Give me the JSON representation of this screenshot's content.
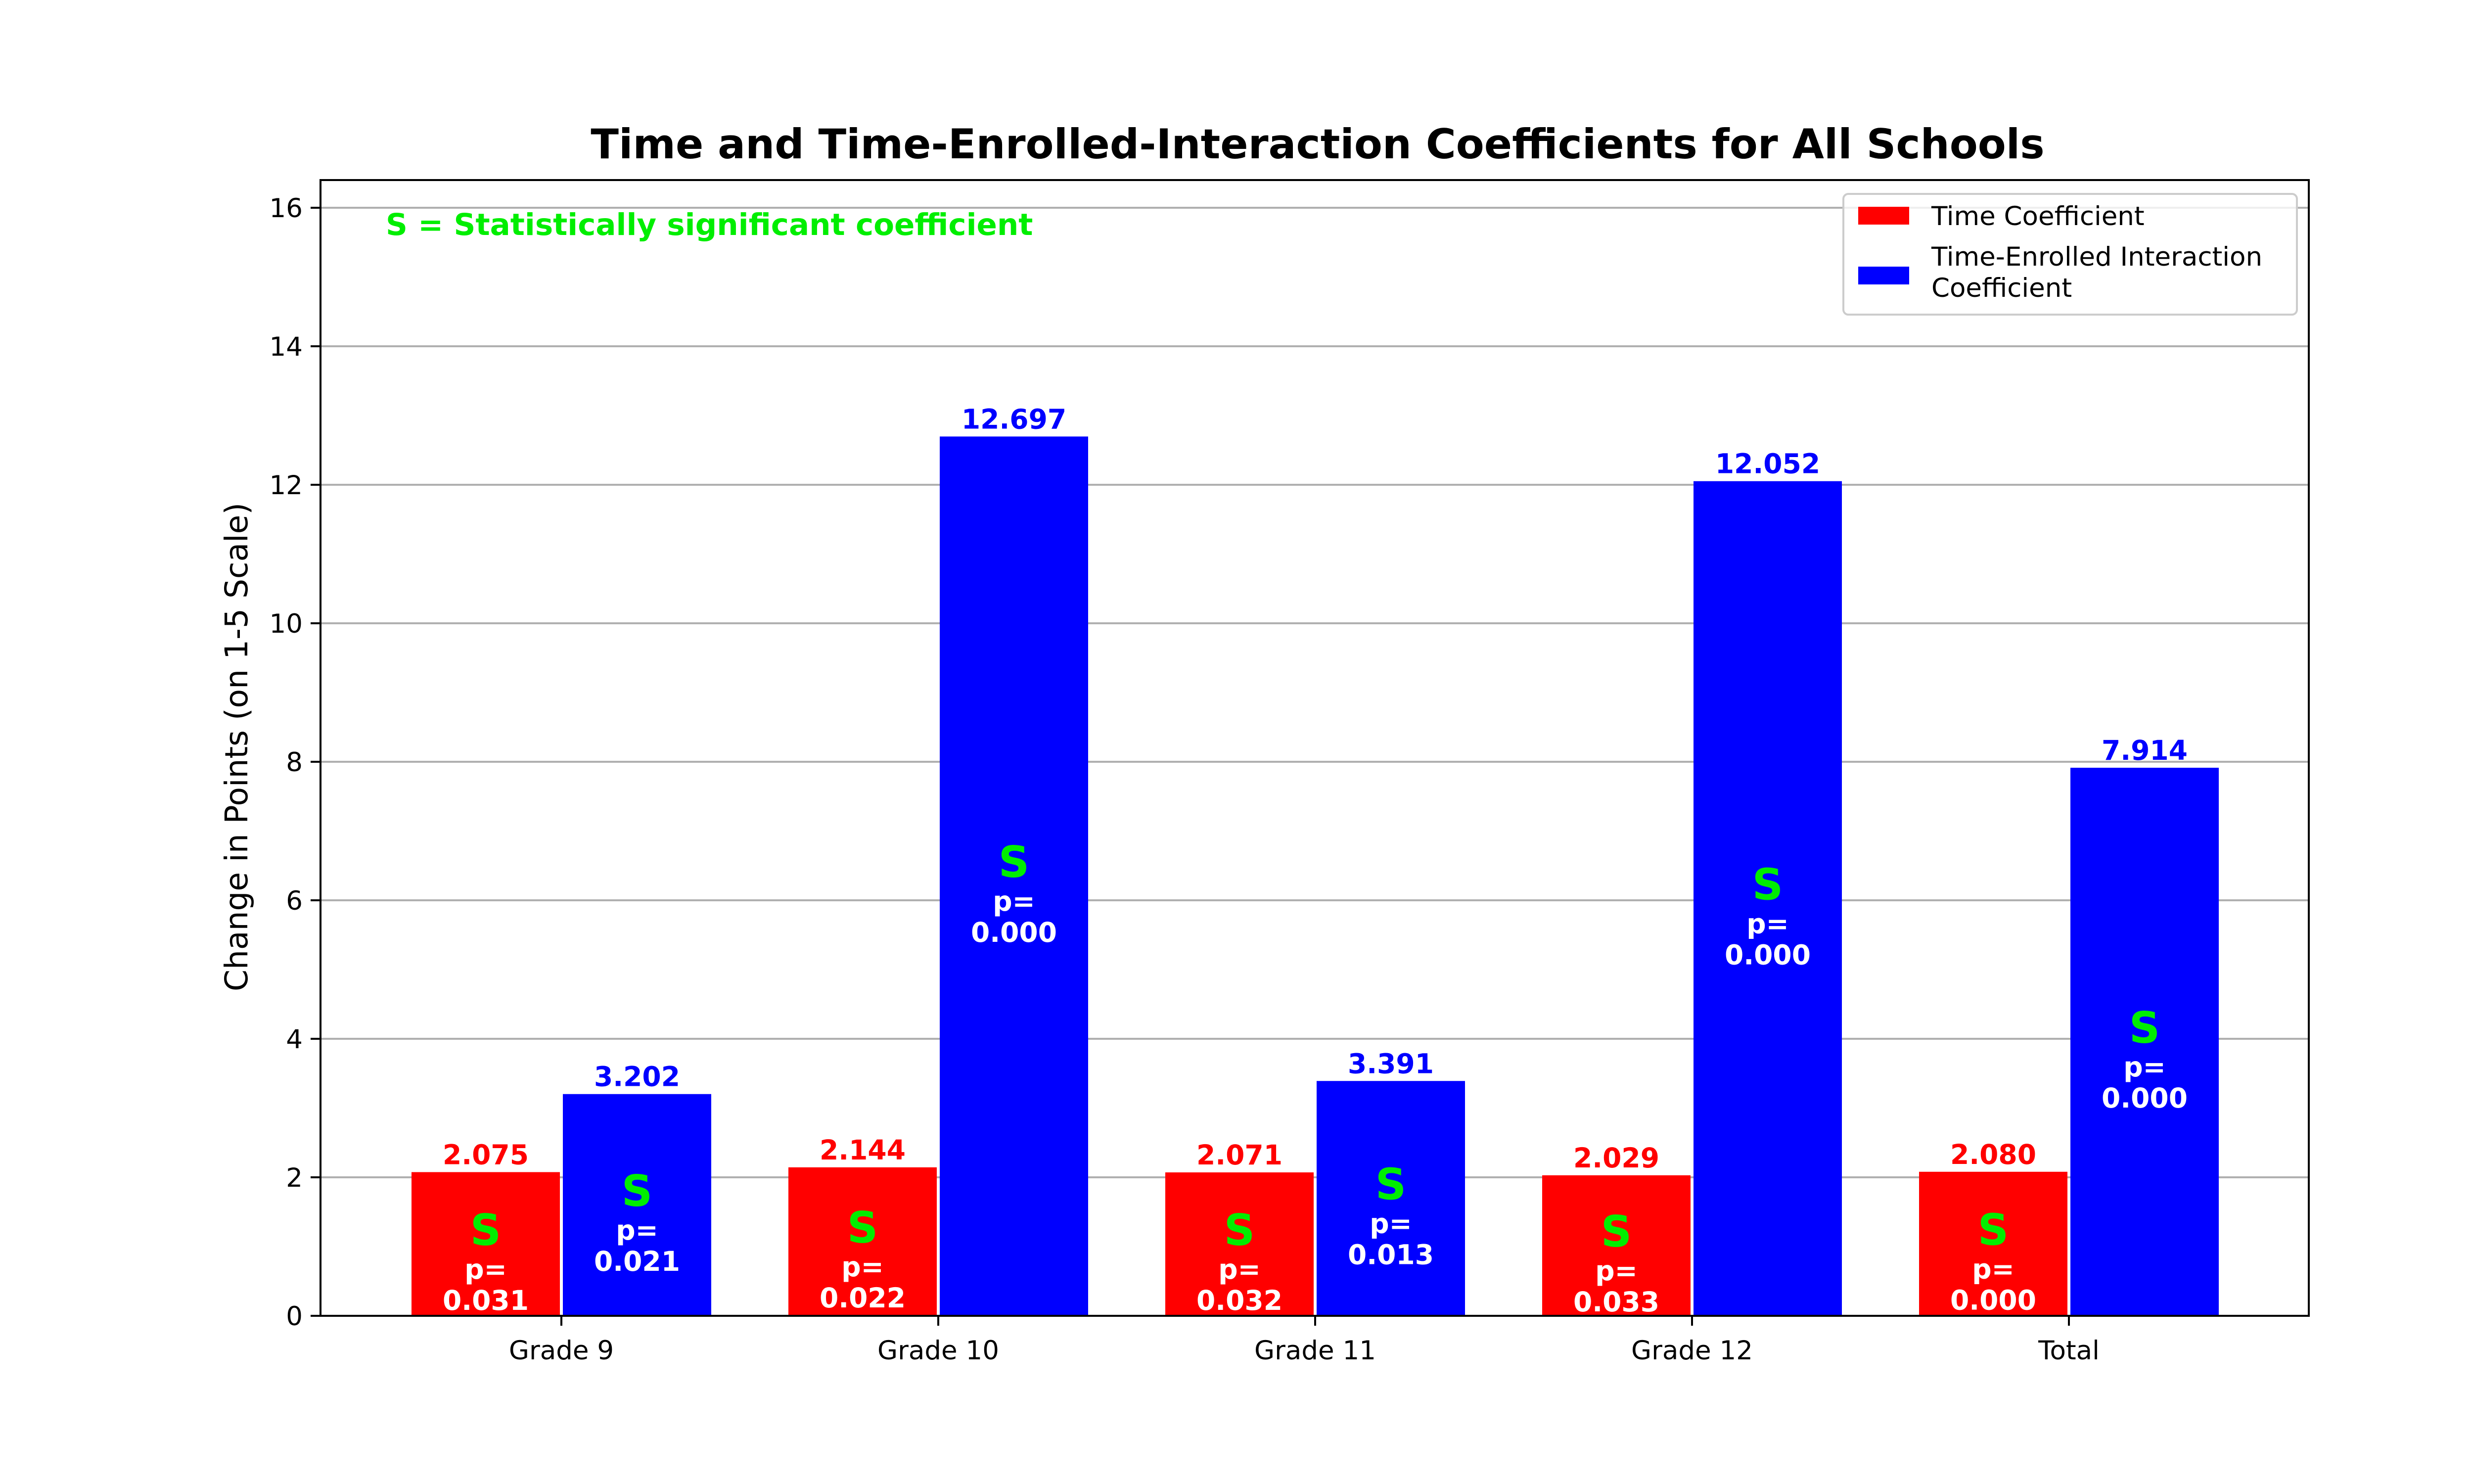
{
  "chart_data": {
    "type": "bar",
    "title": "Time and Time-Enrolled-Interaction Coefficients for All Schools",
    "ylabel": "Change in Points (on 1-5 Scale)",
    "xlabel": "",
    "ylim": [
      0,
      16.4
    ],
    "yticks": [
      0,
      2,
      4,
      6,
      8,
      10,
      12,
      14,
      16
    ],
    "grid": "y",
    "legend_position": "top-right",
    "annotation": "S = Statistically significant coefficient",
    "significance_marker": "S",
    "p_prefix": "p=",
    "categories": [
      "Grade 9",
      "Grade 10",
      "Grade 11",
      "Grade 12",
      "Total"
    ],
    "series": [
      {
        "name": "Time Coefficient",
        "color": "#ff0000",
        "values": [
          2.075,
          2.144,
          2.071,
          2.029,
          2.08
        ],
        "value_labels": [
          "2.075",
          "2.144",
          "2.071",
          "2.029",
          "2.080"
        ],
        "p_values": [
          "0.031",
          "0.022",
          "0.032",
          "0.033",
          "0.000"
        ],
        "significant": [
          true,
          true,
          true,
          true,
          true
        ]
      },
      {
        "name": "Time-Enrolled Interaction Coefficient",
        "legend_lines": [
          "Time-Enrolled Interaction",
          "Coefficient"
        ],
        "color": "#0000ff",
        "values": [
          3.202,
          12.697,
          3.391,
          12.052,
          7.914
        ],
        "value_labels": [
          "3.202",
          "12.697",
          "3.391",
          "12.052",
          "7.914"
        ],
        "p_values": [
          "0.021",
          "0.000",
          "0.013",
          "0.000",
          "0.000"
        ],
        "significant": [
          true,
          true,
          true,
          true,
          true
        ]
      }
    ],
    "colors": {
      "significance": "#00ee00",
      "grid": "#b0b0b0",
      "axis": "#000000"
    }
  }
}
